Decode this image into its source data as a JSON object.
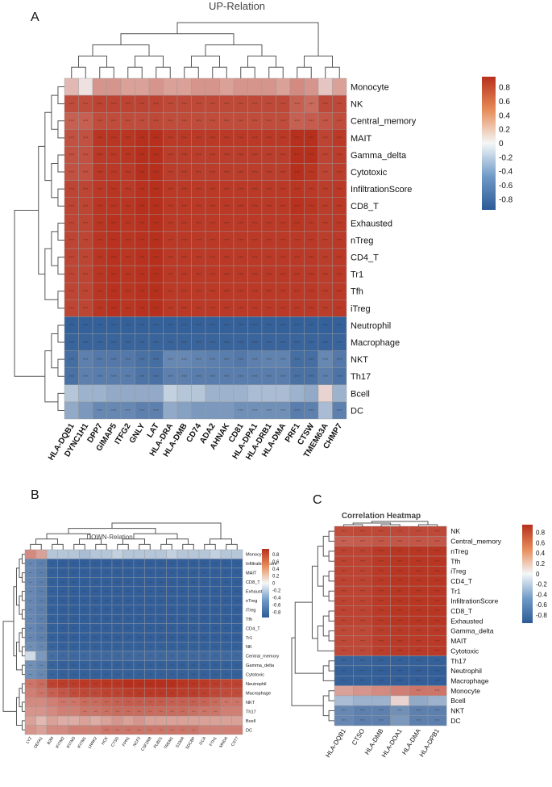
{
  "panels": {
    "A": {
      "letter": "A",
      "title": "UP-Relation"
    },
    "B": {
      "letter": "B",
      "title": "DOWN-Relation"
    },
    "C": {
      "letter": "C",
      "title": "Correlation Heatmap"
    }
  },
  "colorbar_ticks": [
    "0.8",
    "0.6",
    "0.4",
    "0.2",
    "0",
    "-0.2",
    "-0.4",
    "-0.6",
    "-0.8"
  ],
  "chart_data": [
    {
      "type": "heatmap",
      "title": "UP-Relation",
      "rows": [
        "Monocyte",
        "NK",
        "Central_memory",
        "MAIT",
        "Gamma_delta",
        "Cytotoxic",
        "InfiltrationScore",
        "CD8_T",
        "Exhausted",
        "nTreg",
        "CD4_T",
        "Tr1",
        "Tfh",
        "iTreg",
        "Neutrophil",
        "Macrophage",
        "NKT",
        "Th17",
        "Bcell",
        "DC"
      ],
      "columns": [
        "HLA-DQB1",
        "DYNC1H1",
        "DPP7",
        "GIMAP5",
        "ITFG2",
        "GNLY",
        "LAT",
        "HLA-DRA",
        "HLA-DMB",
        "CD74",
        "ADA2",
        "AHNAK",
        "CD81",
        "HLA-DPA1",
        "HLA-DRB1",
        "HLA-DMA",
        "PRF1",
        "CTSW",
        "TMEM63A",
        "CHMP7"
      ],
      "values": [
        [
          0.2,
          0.05,
          0.35,
          0.35,
          0.3,
          0.3,
          0.35,
          0.3,
          0.3,
          0.35,
          0.35,
          0.3,
          0.35,
          0.35,
          0.35,
          0.3,
          0.4,
          0.35,
          0.15,
          0.3
        ],
        [
          0.7,
          0.7,
          0.75,
          0.75,
          0.75,
          0.75,
          0.75,
          0.72,
          0.72,
          0.72,
          0.72,
          0.72,
          0.72,
          0.72,
          0.72,
          0.72,
          0.6,
          0.55,
          0.72,
          0.72
        ],
        [
          0.6,
          0.6,
          0.7,
          0.7,
          0.7,
          0.7,
          0.72,
          0.7,
          0.7,
          0.7,
          0.7,
          0.7,
          0.7,
          0.7,
          0.7,
          0.7,
          0.6,
          0.62,
          0.65,
          0.7
        ],
        [
          0.68,
          0.68,
          0.82,
          0.82,
          0.82,
          0.86,
          0.88,
          0.8,
          0.8,
          0.8,
          0.8,
          0.8,
          0.8,
          0.8,
          0.8,
          0.8,
          0.86,
          0.86,
          0.75,
          0.8
        ],
        [
          0.68,
          0.68,
          0.8,
          0.8,
          0.82,
          0.85,
          0.86,
          0.78,
          0.78,
          0.78,
          0.78,
          0.78,
          0.78,
          0.78,
          0.78,
          0.78,
          0.88,
          0.85,
          0.75,
          0.78
        ],
        [
          0.68,
          0.68,
          0.8,
          0.8,
          0.8,
          0.85,
          0.86,
          0.78,
          0.78,
          0.78,
          0.78,
          0.78,
          0.78,
          0.78,
          0.78,
          0.78,
          0.86,
          0.82,
          0.74,
          0.78
        ],
        [
          0.74,
          0.74,
          0.8,
          0.82,
          0.8,
          0.84,
          0.86,
          0.8,
          0.8,
          0.8,
          0.8,
          0.8,
          0.8,
          0.8,
          0.8,
          0.8,
          0.82,
          0.8,
          0.78,
          0.8
        ],
        [
          0.74,
          0.74,
          0.82,
          0.82,
          0.82,
          0.85,
          0.86,
          0.8,
          0.8,
          0.8,
          0.8,
          0.8,
          0.8,
          0.8,
          0.8,
          0.8,
          0.84,
          0.82,
          0.78,
          0.8
        ],
        [
          0.74,
          0.74,
          0.82,
          0.84,
          0.82,
          0.84,
          0.86,
          0.8,
          0.8,
          0.8,
          0.8,
          0.8,
          0.8,
          0.8,
          0.8,
          0.8,
          0.82,
          0.8,
          0.78,
          0.8
        ],
        [
          0.74,
          0.74,
          0.82,
          0.84,
          0.82,
          0.84,
          0.86,
          0.8,
          0.8,
          0.8,
          0.8,
          0.8,
          0.8,
          0.8,
          0.8,
          0.8,
          0.8,
          0.8,
          0.78,
          0.8
        ],
        [
          0.74,
          0.74,
          0.82,
          0.84,
          0.82,
          0.84,
          0.86,
          0.8,
          0.8,
          0.8,
          0.8,
          0.8,
          0.8,
          0.8,
          0.8,
          0.8,
          0.8,
          0.8,
          0.78,
          0.8
        ],
        [
          0.74,
          0.74,
          0.82,
          0.84,
          0.82,
          0.84,
          0.86,
          0.8,
          0.8,
          0.8,
          0.8,
          0.8,
          0.8,
          0.8,
          0.8,
          0.8,
          0.8,
          0.8,
          0.78,
          0.8
        ],
        [
          0.74,
          0.74,
          0.82,
          0.84,
          0.82,
          0.84,
          0.86,
          0.8,
          0.8,
          0.8,
          0.8,
          0.8,
          0.8,
          0.8,
          0.8,
          0.8,
          0.8,
          0.8,
          0.78,
          0.8
        ],
        [
          0.74,
          0.74,
          0.82,
          0.84,
          0.82,
          0.84,
          0.86,
          0.8,
          0.8,
          0.8,
          0.8,
          0.8,
          0.8,
          0.8,
          0.8,
          0.8,
          0.8,
          0.8,
          0.78,
          0.8
        ],
        [
          -0.8,
          -0.8,
          -0.8,
          -0.8,
          -0.8,
          -0.8,
          -0.8,
          -0.8,
          -0.8,
          -0.8,
          -0.8,
          -0.8,
          -0.8,
          -0.8,
          -0.8,
          -0.8,
          -0.8,
          -0.8,
          -0.8,
          -0.8
        ],
        [
          -0.78,
          -0.78,
          -0.78,
          -0.78,
          -0.78,
          -0.78,
          -0.78,
          -0.78,
          -0.78,
          -0.78,
          -0.78,
          -0.78,
          -0.78,
          -0.78,
          -0.78,
          -0.78,
          -0.78,
          -0.78,
          -0.78,
          -0.78
        ],
        [
          -0.72,
          -0.6,
          -0.65,
          -0.65,
          -0.65,
          -0.7,
          -0.72,
          -0.55,
          -0.55,
          -0.58,
          -0.6,
          -0.62,
          -0.65,
          -0.6,
          -0.58,
          -0.58,
          -0.72,
          -0.72,
          -0.55,
          -0.65
        ],
        [
          -0.7,
          -0.6,
          -0.62,
          -0.62,
          -0.62,
          -0.68,
          -0.7,
          -0.6,
          -0.6,
          -0.62,
          -0.62,
          -0.62,
          -0.62,
          -0.62,
          -0.62,
          -0.62,
          -0.7,
          -0.7,
          -0.6,
          -0.68
        ],
        [
          -0.2,
          -0.3,
          -0.3,
          -0.35,
          -0.35,
          -0.35,
          -0.35,
          -0.15,
          -0.2,
          -0.2,
          -0.3,
          -0.3,
          -0.3,
          -0.25,
          -0.25,
          -0.25,
          -0.3,
          -0.35,
          0.1,
          -0.3
        ],
        [
          -0.35,
          -0.45,
          -0.55,
          -0.55,
          -0.55,
          -0.6,
          -0.6,
          -0.35,
          -0.4,
          -0.45,
          -0.45,
          -0.45,
          -0.5,
          -0.5,
          -0.5,
          -0.5,
          -0.62,
          -0.6,
          -0.25,
          -0.6
        ]
      ]
    },
    {
      "type": "heatmap",
      "title": "DOWN-Relation",
      "rows": [
        "Monocyte",
        "InfiltrationScore",
        "MAIT",
        "CD8_T",
        "Exhausted",
        "nTreg",
        "iTreg",
        "Tfh",
        "CD4_T",
        "Tr1",
        "NK",
        "Central_memory",
        "Gamma_delta",
        "Cytotoxic",
        "Neutrophil",
        "Macrophage",
        "NKT",
        "Th17",
        "Bcell",
        "DC"
      ],
      "columns": [
        "LYZ",
        "DEFA1",
        "B2M",
        "IFITM2",
        "IFITM3",
        "IFITM1",
        "LRRK2",
        "HCK",
        "CTSD",
        "FPR1",
        "NCF2",
        "CSF2RB",
        "PLBD1",
        "TREM1",
        "S100A",
        "SDCBP",
        "GCA",
        "FTH1",
        "MNDA",
        "CST7"
      ],
      "values": [
        [
          0.4,
          0.3,
          -0.2,
          -0.2,
          -0.2,
          -0.25,
          -0.2,
          -0.2,
          -0.15,
          -0.2,
          -0.2,
          -0.2,
          -0.2,
          -0.15,
          -0.2,
          -0.2,
          -0.2,
          -0.15,
          -0.2,
          -0.2
        ],
        [
          -0.55,
          -0.6,
          -0.8,
          -0.82,
          -0.82,
          -0.82,
          -0.82,
          -0.82,
          -0.82,
          -0.82,
          -0.82,
          -0.82,
          -0.82,
          -0.82,
          -0.82,
          -0.82,
          -0.82,
          -0.82,
          -0.82,
          -0.82
        ],
        [
          -0.55,
          -0.6,
          -0.8,
          -0.82,
          -0.82,
          -0.82,
          -0.82,
          -0.82,
          -0.82,
          -0.82,
          -0.82,
          -0.82,
          -0.82,
          -0.82,
          -0.82,
          -0.82,
          -0.82,
          -0.82,
          -0.82,
          -0.82
        ],
        [
          -0.55,
          -0.6,
          -0.8,
          -0.82,
          -0.82,
          -0.82,
          -0.82,
          -0.82,
          -0.82,
          -0.82,
          -0.82,
          -0.82,
          -0.82,
          -0.82,
          -0.82,
          -0.82,
          -0.82,
          -0.82,
          -0.82,
          -0.82
        ],
        [
          -0.55,
          -0.6,
          -0.8,
          -0.82,
          -0.82,
          -0.82,
          -0.82,
          -0.82,
          -0.82,
          -0.82,
          -0.82,
          -0.82,
          -0.82,
          -0.82,
          -0.82,
          -0.82,
          -0.82,
          -0.82,
          -0.82,
          -0.82
        ],
        [
          -0.55,
          -0.6,
          -0.8,
          -0.82,
          -0.82,
          -0.82,
          -0.82,
          -0.82,
          -0.82,
          -0.82,
          -0.82,
          -0.82,
          -0.82,
          -0.82,
          -0.82,
          -0.82,
          -0.82,
          -0.82,
          -0.82,
          -0.82
        ],
        [
          -0.55,
          -0.6,
          -0.8,
          -0.82,
          -0.82,
          -0.82,
          -0.82,
          -0.82,
          -0.82,
          -0.82,
          -0.82,
          -0.82,
          -0.82,
          -0.82,
          -0.82,
          -0.82,
          -0.82,
          -0.82,
          -0.82,
          -0.82
        ],
        [
          -0.55,
          -0.6,
          -0.8,
          -0.82,
          -0.82,
          -0.82,
          -0.82,
          -0.82,
          -0.82,
          -0.82,
          -0.82,
          -0.82,
          -0.82,
          -0.82,
          -0.82,
          -0.82,
          -0.82,
          -0.82,
          -0.82,
          -0.82
        ],
        [
          -0.55,
          -0.6,
          -0.8,
          -0.82,
          -0.82,
          -0.82,
          -0.82,
          -0.82,
          -0.82,
          -0.82,
          -0.82,
          -0.82,
          -0.82,
          -0.82,
          -0.82,
          -0.82,
          -0.82,
          -0.82,
          -0.82,
          -0.82
        ],
        [
          -0.55,
          -0.6,
          -0.8,
          -0.82,
          -0.82,
          -0.82,
          -0.82,
          -0.82,
          -0.82,
          -0.82,
          -0.82,
          -0.82,
          -0.82,
          -0.82,
          -0.82,
          -0.82,
          -0.82,
          -0.82,
          -0.82,
          -0.82
        ],
        [
          -0.5,
          -0.55,
          -0.78,
          -0.8,
          -0.8,
          -0.8,
          -0.8,
          -0.8,
          -0.8,
          -0.8,
          -0.8,
          -0.8,
          -0.8,
          -0.8,
          -0.8,
          -0.8,
          -0.8,
          -0.8,
          -0.8,
          -0.8
        ],
        [
          -0.1,
          -0.45,
          -0.72,
          -0.75,
          -0.75,
          -0.75,
          -0.75,
          -0.75,
          -0.75,
          -0.75,
          -0.75,
          -0.75,
          -0.75,
          -0.75,
          -0.75,
          -0.75,
          -0.75,
          -0.75,
          -0.75,
          -0.75
        ],
        [
          -0.5,
          -0.55,
          -0.78,
          -0.8,
          -0.8,
          -0.8,
          -0.8,
          -0.8,
          -0.8,
          -0.8,
          -0.8,
          -0.8,
          -0.8,
          -0.8,
          -0.8,
          -0.8,
          -0.8,
          -0.8,
          -0.8,
          -0.8
        ],
        [
          -0.5,
          -0.55,
          -0.78,
          -0.8,
          -0.8,
          -0.8,
          -0.8,
          -0.8,
          -0.8,
          -0.8,
          -0.8,
          -0.8,
          -0.8,
          -0.8,
          -0.8,
          -0.8,
          -0.8,
          -0.8,
          -0.8,
          -0.8
        ],
        [
          0.5,
          0.55,
          0.75,
          0.78,
          0.78,
          0.8,
          0.8,
          0.82,
          0.82,
          0.85,
          0.85,
          0.85,
          0.85,
          0.85,
          0.82,
          0.82,
          0.8,
          0.78,
          0.75,
          0.75
        ],
        [
          0.45,
          0.5,
          0.6,
          0.65,
          0.7,
          0.72,
          0.72,
          0.75,
          0.75,
          0.78,
          0.8,
          0.8,
          0.8,
          0.8,
          0.78,
          0.78,
          0.76,
          0.72,
          0.7,
          0.7
        ],
        [
          0.4,
          0.4,
          0.45,
          0.5,
          0.5,
          0.55,
          0.55,
          0.58,
          0.6,
          0.62,
          0.62,
          0.62,
          0.62,
          0.6,
          0.6,
          0.6,
          0.58,
          0.55,
          0.5,
          0.5
        ],
        [
          0.35,
          0.35,
          0.4,
          0.45,
          0.45,
          0.5,
          0.5,
          0.52,
          0.55,
          0.55,
          0.55,
          0.55,
          0.55,
          0.55,
          0.55,
          0.52,
          0.5,
          0.5,
          0.45,
          0.45
        ],
        [
          0.3,
          0.2,
          0.3,
          0.25,
          0.25,
          0.3,
          0.25,
          0.3,
          0.35,
          0.3,
          0.35,
          0.3,
          0.3,
          0.3,
          0.3,
          0.3,
          0.3,
          0.3,
          0.3,
          0.3
        ],
        [
          0.35,
          0.3,
          0.4,
          0.4,
          0.45,
          0.45,
          0.45,
          0.5,
          0.5,
          0.5,
          0.5,
          0.5,
          0.5,
          0.5,
          0.5,
          0.5,
          0.45,
          0.45,
          0.45,
          0.45
        ]
      ]
    },
    {
      "type": "heatmap",
      "title": "Correlation Heatmap",
      "rows": [
        "NK",
        "Central_memory",
        "nTreg",
        "Tfh",
        "iTreg",
        "CD4_T",
        "Tr1",
        "InfiltrationScore",
        "CD8_T",
        "Exhausted",
        "Gamma_delta",
        "MAIT",
        "Cytotoxic",
        "Th17",
        "Neutrophil",
        "Macrophage",
        "Monocyte",
        "Bcell",
        "NKT",
        "DC"
      ],
      "columns": [
        "HLA-DQB1",
        "CTSO",
        "HLA-DMB",
        "HLA-DOA1",
        "HLA-DMA",
        "HLA-DPB1"
      ],
      "values": [
        [
          0.7,
          0.72,
          0.72,
          0.72,
          0.72,
          0.72
        ],
        [
          0.6,
          0.62,
          0.65,
          0.65,
          0.65,
          0.65
        ],
        [
          0.75,
          0.75,
          0.8,
          0.82,
          0.82,
          0.82
        ],
        [
          0.75,
          0.75,
          0.8,
          0.82,
          0.82,
          0.82
        ],
        [
          0.75,
          0.75,
          0.8,
          0.82,
          0.82,
          0.82
        ],
        [
          0.75,
          0.75,
          0.8,
          0.82,
          0.82,
          0.82
        ],
        [
          0.75,
          0.75,
          0.8,
          0.82,
          0.82,
          0.82
        ],
        [
          0.75,
          0.75,
          0.8,
          0.82,
          0.82,
          0.82
        ],
        [
          0.75,
          0.75,
          0.8,
          0.82,
          0.82,
          0.82
        ],
        [
          0.75,
          0.75,
          0.8,
          0.82,
          0.82,
          0.82
        ],
        [
          0.72,
          0.72,
          0.78,
          0.8,
          0.8,
          0.8
        ],
        [
          0.72,
          0.72,
          0.78,
          0.8,
          0.8,
          0.8
        ],
        [
          0.72,
          0.72,
          0.78,
          0.8,
          0.8,
          0.8
        ],
        [
          -0.78,
          -0.78,
          -0.8,
          -0.8,
          -0.8,
          -0.8
        ],
        [
          -0.8,
          -0.8,
          -0.82,
          -0.82,
          -0.82,
          -0.82
        ],
        [
          -0.8,
          -0.8,
          -0.82,
          -0.82,
          -0.82,
          -0.82
        ],
        [
          0.3,
          0.35,
          0.4,
          0.45,
          0.5,
          0.5
        ],
        [
          -0.25,
          -0.3,
          -0.3,
          0.1,
          -0.35,
          -0.3
        ],
        [
          -0.55,
          -0.6,
          -0.6,
          -0.5,
          -0.6,
          -0.6
        ],
        [
          -0.55,
          -0.6,
          -0.6,
          -0.45,
          -0.6,
          -0.6
        ]
      ]
    }
  ],
  "scale": {
    "min": -0.85,
    "max": 0.85,
    "low_color": "#2c5a96",
    "mid_color": "#f4f7f7",
    "high_color": "#b7301d"
  }
}
